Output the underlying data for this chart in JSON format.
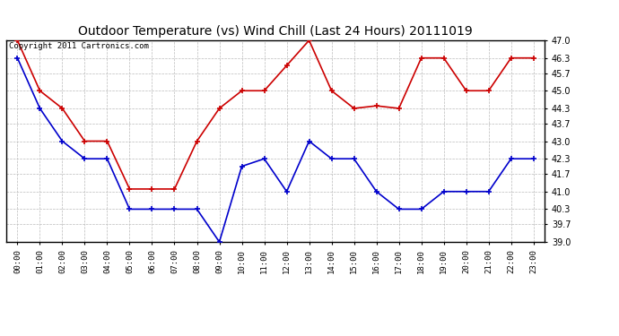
{
  "title": "Outdoor Temperature (vs) Wind Chill (Last 24 Hours) 20111019",
  "copyright_text": "Copyright 2011 Cartronics.com",
  "x_labels": [
    "00:00",
    "01:00",
    "02:00",
    "03:00",
    "04:00",
    "05:00",
    "06:00",
    "07:00",
    "08:00",
    "09:00",
    "10:00",
    "11:00",
    "12:00",
    "13:00",
    "14:00",
    "15:00",
    "16:00",
    "17:00",
    "18:00",
    "19:00",
    "20:00",
    "21:00",
    "22:00",
    "23:00"
  ],
  "red_data": [
    47.0,
    45.0,
    44.3,
    43.0,
    43.0,
    41.1,
    41.1,
    41.1,
    43.0,
    44.3,
    45.0,
    45.0,
    46.0,
    47.0,
    45.0,
    44.3,
    44.4,
    44.3,
    46.3,
    46.3,
    45.0,
    45.0,
    46.3,
    46.3
  ],
  "blue_data": [
    46.3,
    44.3,
    43.0,
    42.3,
    42.3,
    40.3,
    40.3,
    40.3,
    40.3,
    39.0,
    42.0,
    42.3,
    41.0,
    43.0,
    42.3,
    42.3,
    41.0,
    40.3,
    40.3,
    41.0,
    41.0,
    41.0,
    42.3,
    42.3
  ],
  "ylim": [
    39.0,
    47.0
  ],
  "yticks": [
    39.0,
    39.7,
    40.3,
    41.0,
    41.7,
    42.3,
    43.0,
    43.7,
    44.3,
    45.0,
    45.7,
    46.3,
    47.0
  ],
  "red_color": "#cc0000",
  "blue_color": "#0000cc",
  "bg_color": "#ffffff",
  "grid_color": "#bbbbbb",
  "title_fontsize": 10,
  "copyright_fontsize": 6.5
}
